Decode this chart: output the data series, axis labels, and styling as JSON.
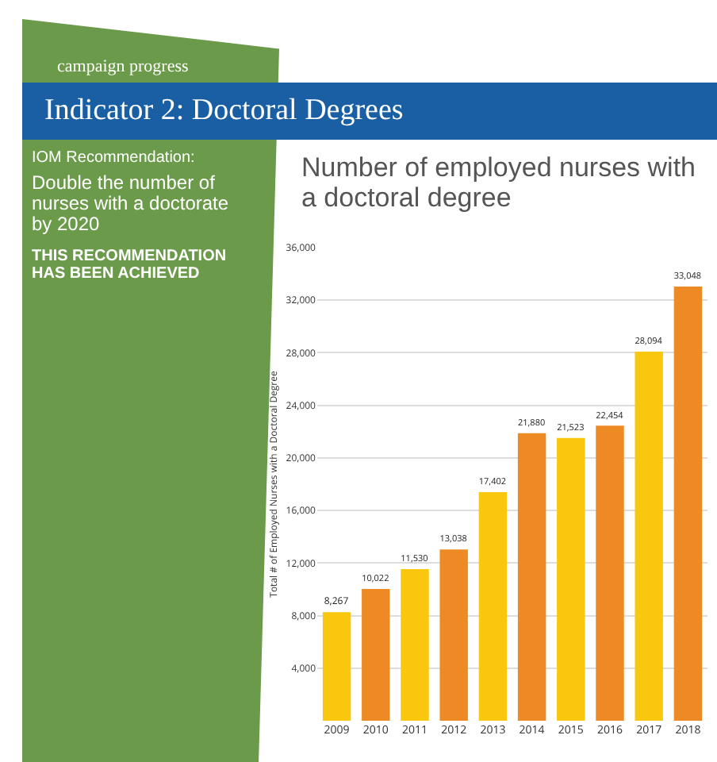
{
  "chart_data": {
    "type": "bar",
    "title": "Indicator 2: Doctoral Degrees",
    "subtitle": "Number of employed nurses with a doctoral degree",
    "ylabel": "Total # of Employed Nurses with a Doctoral Degree",
    "annotations": [
      "campaign progress",
      "IOM Recommendation:",
      "Double the number of nurses with a doctorate by 2020",
      "THIS RECOMMENDATION HAS BEEN ACHIEVED"
    ],
    "categories": [
      "2009",
      "2010",
      "2011",
      "2012",
      "2013",
      "2014",
      "2015",
      "2016",
      "2017",
      "2018"
    ],
    "values": [
      8267,
      10022,
      11530,
      13038,
      17402,
      21880,
      21523,
      22454,
      28094,
      33048
    ],
    "value_labels": [
      "8,267",
      "10,022",
      "11,530",
      "13,038",
      "17,402",
      "21,880",
      "21,523",
      "22,454",
      "28,094",
      "33,048"
    ],
    "colors": [
      "#f9c80e",
      "#ee8a24",
      "#f9c80e",
      "#ee8a24",
      "#f9c80e",
      "#ee8a24",
      "#f9c80e",
      "#ee8a24",
      "#f9c80e",
      "#ee8a24"
    ],
    "ylim": [
      0,
      36000
    ],
    "yticks": [
      {
        "value": 4000,
        "label": "4,000"
      },
      {
        "value": 8000,
        "label": "8,000"
      },
      {
        "value": 12000,
        "label": "12,000"
      },
      {
        "value": 16000,
        "label": "16,000"
      },
      {
        "value": 20000,
        "label": "20,000"
      },
      {
        "value": 24000,
        "label": "24,000"
      },
      {
        "value": 28000,
        "label": "28,000"
      },
      {
        "value": 32000,
        "label": "32,000"
      },
      {
        "value": 36000,
        "label": "36,000"
      }
    ],
    "grid": "y"
  }
}
